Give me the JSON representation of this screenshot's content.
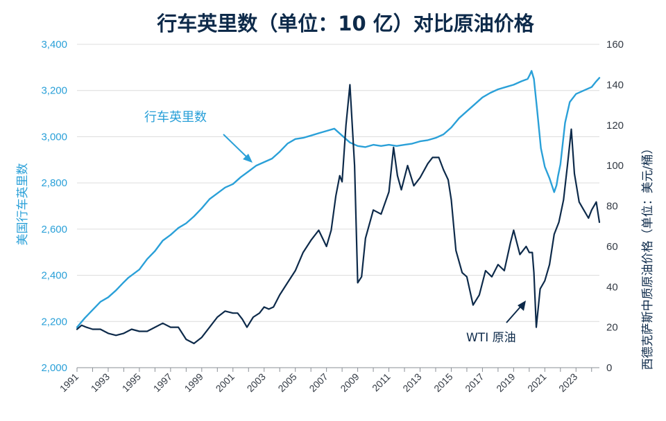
{
  "chart_data": {
    "type": "line",
    "title": "行车英里数（单位：10 亿）对比原油价格",
    "ylabel_left": "美国行车英里数",
    "ylabel_right": "西德克萨斯中质原油价格（单位：美元/桶）",
    "y_left_range": [
      2000,
      3400
    ],
    "y_right_range": [
      0,
      160
    ],
    "y_left_ticks": [
      "2,000",
      "2,200",
      "2,400",
      "2,600",
      "2,800",
      "3,000",
      "3,200",
      "3,400"
    ],
    "y_right_ticks": [
      "0",
      "20",
      "40",
      "60",
      "80",
      "100",
      "120",
      "140",
      "160"
    ],
    "x_range": [
      1991,
      2024.5
    ],
    "x_ticks": [
      "1991",
      "1993",
      "1995",
      "1997",
      "1999",
      "2001",
      "2003",
      "2005",
      "2007",
      "2009",
      "2011",
      "2013",
      "2015",
      "2017",
      "2019",
      "2021",
      "2023"
    ],
    "grid": "horizontal",
    "annotations": [
      {
        "text": "行车英里数",
        "series": "vmt"
      },
      {
        "text": "WTI 原油",
        "series": "wti"
      }
    ],
    "colors": {
      "vmt": "#2aa0d8",
      "wti": "#0d2a4a"
    },
    "series": [
      {
        "key": "vmt",
        "axis": "left",
        "x": [
          1991.0,
          1991.5,
          1992.0,
          1992.5,
          1993.0,
          1993.5,
          1994.0,
          1994.3,
          1994.6,
          1995.0,
          1995.5,
          1996.0,
          1996.5,
          1997.0,
          1997.5,
          1998.0,
          1998.5,
          1999.0,
          1999.5,
          2000.0,
          2000.5,
          2001.0,
          2001.5,
          2002.0,
          2002.5,
          2003.0,
          2003.5,
          2004.0,
          2004.5,
          2005.0,
          2005.5,
          2006.0,
          2006.5,
          2007.0,
          2007.5,
          2008.0,
          2008.5,
          2009.0,
          2009.5,
          2010.0,
          2010.5,
          2011.0,
          2011.5,
          2012.0,
          2012.5,
          2013.0,
          2013.5,
          2014.0,
          2014.5,
          2015.0,
          2015.5,
          2016.0,
          2016.5,
          2017.0,
          2017.5,
          2018.0,
          2018.5,
          2019.0,
          2019.5,
          2019.9,
          2020.05,
          2020.15,
          2020.3,
          2020.5,
          2020.75,
          2021.0,
          2021.3,
          2021.6,
          2021.75,
          2021.85,
          2022.0,
          2022.3,
          2022.6,
          2023.0,
          2023.5,
          2024.0,
          2024.3,
          2024.5
        ],
        "values": [
          2175,
          2215,
          2250,
          2285,
          2305,
          2335,
          2370,
          2390,
          2405,
          2425,
          2470,
          2505,
          2550,
          2575,
          2605,
          2625,
          2655,
          2690,
          2730,
          2755,
          2780,
          2795,
          2825,
          2850,
          2875,
          2890,
          2905,
          2935,
          2970,
          2990,
          2995,
          3005,
          3015,
          3025,
          3035,
          3005,
          2975,
          2960,
          2955,
          2965,
          2960,
          2965,
          2960,
          2965,
          2970,
          2980,
          2985,
          2995,
          3010,
          3040,
          3080,
          3110,
          3140,
          3170,
          3190,
          3205,
          3215,
          3225,
          3240,
          3250,
          3270,
          3285,
          3250,
          3120,
          2950,
          2870,
          2820,
          2760,
          2790,
          2830,
          2880,
          3060,
          3150,
          3185,
          3200,
          3215,
          3240,
          3255
        ]
      },
      {
        "key": "wti",
        "axis": "right",
        "x": [
          1991.0,
          1991.3,
          1991.6,
          1992.0,
          1992.5,
          1993.0,
          1993.5,
          1994.0,
          1994.5,
          1995.0,
          1995.5,
          1996.0,
          1996.5,
          1997.0,
          1997.5,
          1998.0,
          1998.5,
          1999.0,
          1999.5,
          2000.0,
          2000.5,
          2001.0,
          2001.3,
          2001.6,
          2001.9,
          2002.3,
          2002.7,
          2003.0,
          2003.3,
          2003.6,
          2004.0,
          2004.5,
          2005.0,
          2005.5,
          2006.0,
          2006.5,
          2007.0,
          2007.3,
          2007.6,
          2007.85,
          2008.0,
          2008.25,
          2008.5,
          2008.8,
          2009.0,
          2009.25,
          2009.5,
          2010.0,
          2010.5,
          2011.0,
          2011.3,
          2011.55,
          2011.8,
          2012.2,
          2012.6,
          2013.0,
          2013.5,
          2013.8,
          2014.2,
          2014.5,
          2014.8,
          2015.0,
          2015.3,
          2015.7,
          2016.0,
          2016.4,
          2016.8,
          2017.2,
          2017.6,
          2018.0,
          2018.4,
          2018.8,
          2019.0,
          2019.4,
          2019.8,
          2020.0,
          2020.2,
          2020.3,
          2020.45,
          2020.7,
          2021.0,
          2021.3,
          2021.6,
          2021.9,
          2022.2,
          2022.45,
          2022.7,
          2022.9,
          2023.2,
          2023.5,
          2023.8,
          2024.0,
          2024.3,
          2024.5
        ],
        "values": [
          19,
          21,
          20,
          19,
          19,
          17,
          16,
          17,
          19,
          18,
          18,
          20,
          22,
          20,
          20,
          14,
          12,
          15,
          20,
          25,
          28,
          27,
          27,
          24,
          20,
          25,
          27,
          30,
          29,
          30,
          36,
          42,
          48,
          57,
          63,
          68,
          60,
          68,
          85,
          95,
          92,
          120,
          140,
          100,
          42,
          45,
          64,
          78,
          76,
          87,
          109,
          95,
          88,
          100,
          90,
          94,
          101,
          104,
          104,
          98,
          93,
          83,
          58,
          47,
          45,
          31,
          36,
          48,
          45,
          51,
          48,
          62,
          68,
          56,
          60,
          57,
          57,
          47,
          20,
          39,
          43,
          51,
          66,
          72,
          83,
          100,
          118,
          96,
          82,
          78,
          74,
          78,
          82,
          72
        ]
      }
    ]
  }
}
